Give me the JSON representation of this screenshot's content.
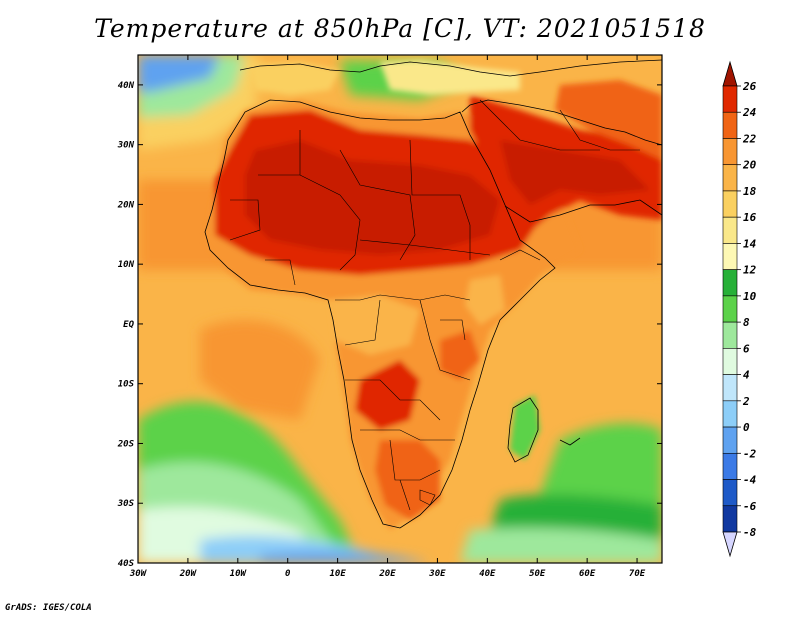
{
  "title": "Temperature at 850hPa [C], VT: 2021051518",
  "credit": "GrADS: IGES/COLA",
  "map": {
    "variable": "Temperature at 850hPa",
    "units": "C",
    "valid_time": "2021051518",
    "lon_range": [
      -30,
      75
    ],
    "lat_range": [
      -40,
      45
    ],
    "lon_ticks": [
      "30W",
      "20W",
      "10W",
      "0",
      "10E",
      "20E",
      "30E",
      "40E",
      "50E",
      "60E",
      "70E"
    ],
    "lat_ticks": [
      "40N",
      "30N",
      "20N",
      "10N",
      "EQ",
      "10S",
      "20S",
      "30S",
      "40S"
    ]
  },
  "colorbar": {
    "labels": [
      "26",
      "24",
      "22",
      "20",
      "18",
      "16",
      "14",
      "12",
      "10",
      "8",
      "6",
      "4",
      "2",
      "0",
      "-2",
      "-4",
      "-6",
      "-8"
    ],
    "colors": [
      "#a01400",
      "#e02800",
      "#f06414",
      "#f89632",
      "#fab448",
      "#fad060",
      "#fae88a",
      "#fdf8b4",
      "#27b038",
      "#5cd24a",
      "#9ee89c",
      "#e0fbe0",
      "#c0e6fb",
      "#8dcef8",
      "#5fa2f0",
      "#3b7ae6",
      "#1e5ac8",
      "#1038a0",
      "#081870",
      "#d6d6ff"
    ]
  }
}
